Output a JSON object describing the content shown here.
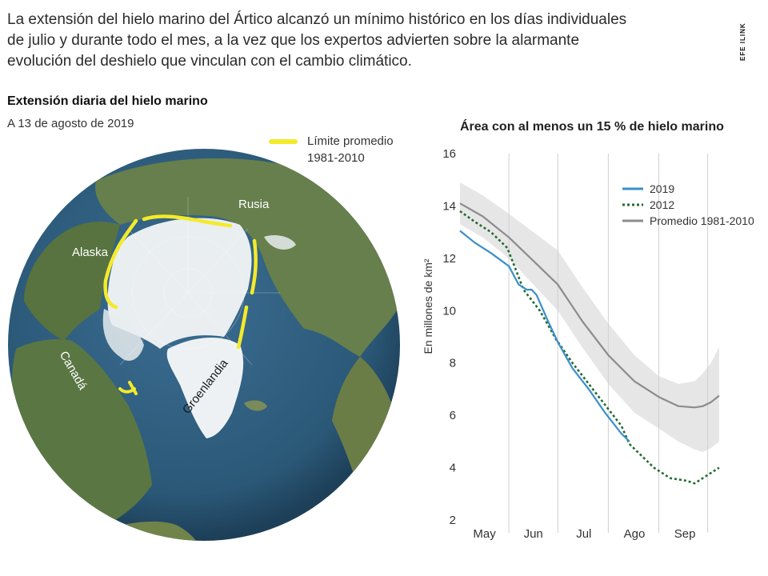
{
  "intro": {
    "lines": [
      "La extensión del hielo marino del Ártico alcanzó un mínimo histórico en los días individuales",
      "de julio y durante todo el mes, a la vez que los expertos advierten sobre la alarmante",
      "evolución del deshielo que vinculan con el cambio climático."
    ]
  },
  "brand": {
    "text": "EFE ILINK"
  },
  "map": {
    "title": "Extensión diaria del hielo marino",
    "subtitle": "A 13 de agosto de 2019",
    "legend_line1": "Límite promedio",
    "legend_line2": "1981-2010",
    "labels": {
      "alaska": "Alaska",
      "rusia": "Rusia",
      "canada": "Canadá",
      "groenlandia": "Groenlandia"
    },
    "colors": {
      "ocean": "#2c5c80",
      "ice": "#f2f4f6",
      "land": "#5f7a48",
      "limit": "#f4ea2a"
    }
  },
  "chart_data": {
    "type": "line",
    "title": "Área con al menos un 15 % de hielo marino",
    "ylabel": "En millones de km²",
    "xlabel": "",
    "ylim": [
      2,
      16
    ],
    "xlim": [
      1,
      190
    ],
    "yticks": [
      2,
      4,
      6,
      8,
      10,
      12,
      14,
      16
    ],
    "x_ticks": [
      {
        "label": "May",
        "x": 16
      },
      {
        "label": "Jun",
        "x": 46
      },
      {
        "label": "Jul",
        "x": 77
      },
      {
        "label": "Ago",
        "x": 108
      },
      {
        "label": "Sep",
        "x": 139
      }
    ],
    "month_boundaries": [
      31,
      61,
      92,
      123,
      153
    ],
    "legend": "top-right",
    "series": [
      {
        "name": "2019",
        "style": "solid",
        "color": "#3a8fcb",
        "x": [
          1,
          10,
          20,
          31,
          37,
          42,
          45,
          48,
          55,
          61,
          70,
          80,
          90,
          100,
          105
        ],
        "values": [
          13.05,
          12.6,
          12.2,
          11.7,
          11.0,
          10.8,
          10.8,
          10.6,
          9.6,
          8.8,
          7.8,
          7.0,
          6.1,
          5.3,
          5.0
        ]
      },
      {
        "name": "2012",
        "style": "dotted",
        "color": "#236b30",
        "x": [
          1,
          10,
          20,
          30,
          35,
          40,
          45,
          50,
          60,
          70,
          80,
          90,
          100,
          105,
          110,
          120,
          130,
          140,
          145,
          150,
          155,
          160
        ],
        "values": [
          13.8,
          13.4,
          13.0,
          12.4,
          11.6,
          10.8,
          10.4,
          10.0,
          8.9,
          8.0,
          7.2,
          6.4,
          5.6,
          4.9,
          4.6,
          4.0,
          3.6,
          3.5,
          3.4,
          3.6,
          3.8,
          4.0
        ]
      },
      {
        "name": "Promedio 1981-2010",
        "style": "solid",
        "color": "#8c8c8c",
        "x": [
          1,
          15,
          31,
          46,
          61,
          76,
          92,
          108,
          123,
          135,
          145,
          150,
          155,
          160
        ],
        "values": [
          14.1,
          13.6,
          12.8,
          11.9,
          11.0,
          9.6,
          8.3,
          7.3,
          6.7,
          6.35,
          6.3,
          6.35,
          6.5,
          6.75
        ]
      }
    ],
    "band": {
      "name": "Rango promedio",
      "color": "#e6e6e6",
      "x": [
        1,
        15,
        31,
        46,
        61,
        76,
        92,
        108,
        123,
        135,
        145,
        150,
        155,
        160
      ],
      "upper": [
        14.9,
        14.4,
        13.7,
        13.0,
        12.3,
        10.9,
        9.5,
        8.3,
        7.5,
        7.2,
        7.3,
        7.6,
        8.0,
        8.6
      ],
      "lower": [
        13.3,
        12.8,
        12.0,
        11.0,
        10.0,
        8.6,
        7.2,
        6.1,
        5.5,
        5.0,
        4.7,
        4.6,
        4.75,
        5.0
      ]
    }
  }
}
